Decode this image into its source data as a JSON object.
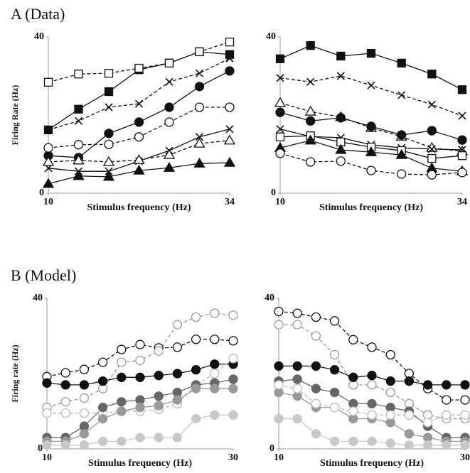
{
  "chart_data": [
    {
      "type": "line",
      "title": "A (Data)",
      "y_label": "Firing Rate (Hz)",
      "x_label": "Stimulus frequency (Hz)",
      "x": [
        10,
        14,
        18,
        22,
        26,
        30,
        34
      ],
      "xlim": [
        10,
        34
      ],
      "xticks": [
        10,
        34
      ],
      "ylim": [
        0,
        40
      ],
      "yticks": [
        0,
        40
      ],
      "series": [
        {
          "color": "#111111",
          "marker": "square",
          "dash": false,
          "values": [
            16.2,
            21.5,
            26,
            31.6,
            33.3,
            36.2,
            35.5
          ]
        },
        {
          "color": "#111111",
          "marker": "square-open",
          "dash": true,
          "values": [
            28.4,
            30.5,
            30.7,
            32,
            33.3,
            36.2,
            38.7
          ]
        },
        {
          "color": "#111111",
          "marker": "x",
          "dash": true,
          "values": [
            16.2,
            18.5,
            22,
            22.9,
            28.5,
            30.7,
            34.5
          ]
        },
        {
          "color": "#111111",
          "marker": "circle",
          "dash": false,
          "values": [
            9.6,
            9.1,
            15.3,
            18.2,
            22,
            27.3,
            31.3
          ]
        },
        {
          "color": "#111111",
          "marker": "circle-open",
          "dash": true,
          "values": [
            11.6,
            12.4,
            12.5,
            14.4,
            18.2,
            22,
            22
          ]
        },
        {
          "color": "#111111",
          "marker": "x",
          "dash": false,
          "values": [
            6.4,
            5.6,
            5.6,
            8.2,
            10.9,
            14.4,
            16.4
          ]
        },
        {
          "color": "#111111",
          "marker": "triangle-open",
          "dash": true,
          "values": [
            8,
            8.4,
            8,
            8.5,
            9.8,
            12.7,
            13.5
          ]
        },
        {
          "color": "#111111",
          "marker": "triangle",
          "dash": false,
          "values": [
            2.4,
            4.4,
            4.2,
            5.8,
            6.5,
            7.6,
            7.8
          ]
        }
      ]
    },
    {
      "type": "line",
      "x_label": "Stimulus frequency (Hz)",
      "x": [
        10,
        14,
        18,
        22,
        26,
        30,
        34
      ],
      "xlim": [
        10,
        34
      ],
      "xticks": [
        10,
        34
      ],
      "ylim": [
        0,
        40
      ],
      "yticks": [
        0,
        40
      ],
      "series": [
        {
          "color": "#111111",
          "marker": "square",
          "dash": false,
          "values": [
            34.4,
            37.8,
            35.1,
            35.8,
            33.3,
            30.5,
            26.5
          ]
        },
        {
          "color": "#111111",
          "marker": "x",
          "dash": true,
          "values": [
            29.5,
            28.5,
            30,
            27.6,
            25.1,
            22.7,
            19.8
          ]
        },
        {
          "color": "#111111",
          "marker": "triangle-open",
          "dash": true,
          "values": [
            23.1,
            20.9,
            19.5,
            16.7,
            14.5,
            11.6,
            10.7
          ]
        },
        {
          "color": "#111111",
          "marker": "circle",
          "dash": false,
          "values": [
            20.7,
            18.5,
            19.3,
            17.1,
            14.9,
            16,
            13.6
          ]
        },
        {
          "color": "#111111",
          "marker": "x",
          "dash": false,
          "values": [
            16.4,
            14.5,
            14.2,
            12.4,
            11.6,
            11.3,
            11.1
          ]
        },
        {
          "color": "#111111",
          "marker": "square-open",
          "dash": false,
          "values": [
            14.4,
            14.7,
            13.1,
            11.8,
            10.9,
            8.9,
            9.6
          ]
        },
        {
          "color": "#111111",
          "marker": "triangle",
          "dash": false,
          "values": [
            11.6,
            13.5,
            11.1,
            10.5,
            9.8,
            6.4,
            5.6
          ]
        },
        {
          "color": "#111111",
          "marker": "circle-open",
          "dash": true,
          "values": [
            10.2,
            8,
            8.2,
            5.8,
            4.9,
            4.7,
            5.3
          ]
        }
      ]
    },
    {
      "type": "line",
      "title": "B (Model)",
      "y_label": "Firing rate (Hz)",
      "x_label": "Stimulus frequency (Hz)",
      "x": [
        10,
        12,
        14,
        16,
        18,
        20,
        22,
        24,
        26,
        28,
        30
      ],
      "xlim": [
        10,
        30
      ],
      "xticks": [
        10,
        30
      ],
      "ylim": [
        0,
        40
      ],
      "yticks": [
        0,
        40
      ],
      "series": [
        {
          "color": "#111111",
          "marker": "circle-open",
          "dash": true,
          "values": [
            19.2,
            20.2,
            21.1,
            23,
            26.4,
            27.7,
            26.8,
            27,
            29.1,
            29.1,
            28.7
          ]
        },
        {
          "color": "#999999",
          "marker": "circle-open",
          "dash": true,
          "values": [
            11,
            12.5,
            13.5,
            16,
            23,
            23.5,
            26,
            33,
            35,
            36,
            35.5
          ]
        },
        {
          "color": "#111111",
          "marker": "circle",
          "dash": false,
          "values": [
            17.5,
            17,
            17,
            18,
            19,
            19,
            19.5,
            20,
            21,
            22.5,
            22.5
          ]
        },
        {
          "color": "#bbbbbb",
          "marker": "circle-open",
          "dash": true,
          "values": [
            9.5,
            9.5,
            9.5,
            9.5,
            10,
            10,
            10.5,
            12,
            17,
            20,
            24
          ]
        },
        {
          "color": "#666666",
          "marker": "circle",
          "dash": false,
          "values": [
            3,
            3,
            6,
            11,
            12.5,
            13,
            14,
            15,
            17,
            17.5,
            18.5
          ]
        },
        {
          "color": "#999999",
          "marker": "circle",
          "dash": false,
          "values": [
            2,
            2,
            4,
            8,
            10,
            11,
            11.5,
            13,
            16,
            16,
            16
          ]
        },
        {
          "color": "#c8c8c8",
          "marker": "circle",
          "dash": false,
          "values": [
            1,
            1,
            1,
            2,
            2,
            3,
            3,
            3,
            8,
            9,
            9
          ]
        }
      ]
    },
    {
      "type": "line",
      "x_label": "Stimulus frequency (Hz)",
      "x": [
        10,
        12,
        14,
        16,
        18,
        20,
        22,
        24,
        26,
        28,
        30
      ],
      "xlim": [
        10,
        30
      ],
      "xticks": [
        10,
        30
      ],
      "ylim": [
        0,
        40
      ],
      "yticks": [
        0,
        40
      ],
      "series": [
        {
          "color": "#111111",
          "marker": "circle-open",
          "dash": true,
          "values": [
            36.5,
            36,
            35,
            34,
            29,
            27,
            25,
            20,
            16,
            13,
            13
          ]
        },
        {
          "color": "#999999",
          "marker": "circle-open",
          "dash": true,
          "values": [
            33,
            33,
            30,
            25,
            17,
            17,
            15,
            12,
            9,
            8,
            8
          ]
        },
        {
          "color": "#111111",
          "marker": "circle",
          "dash": false,
          "values": [
            22,
            22,
            22,
            21,
            19,
            19.5,
            18,
            18,
            17,
            17,
            17
          ]
        },
        {
          "color": "#666666",
          "marker": "circle",
          "dash": false,
          "values": [
            18,
            18.5,
            16,
            15,
            12,
            12,
            11,
            10,
            6,
            3,
            3
          ]
        },
        {
          "color": "#999999",
          "marker": "circle",
          "dash": false,
          "values": [
            15,
            14,
            11,
            11,
            8,
            8,
            7,
            4,
            3,
            2,
            2
          ]
        },
        {
          "color": "#bbbbbb",
          "marker": "circle-open",
          "dash": true,
          "values": [
            17,
            16,
            12,
            11,
            10,
            9,
            9,
            9,
            7,
            9,
            9
          ]
        },
        {
          "color": "#c8c8c8",
          "marker": "circle",
          "dash": false,
          "values": [
            8,
            8,
            4,
            2,
            2,
            2,
            1.5,
            1,
            1,
            1,
            1
          ]
        }
      ]
    }
  ]
}
